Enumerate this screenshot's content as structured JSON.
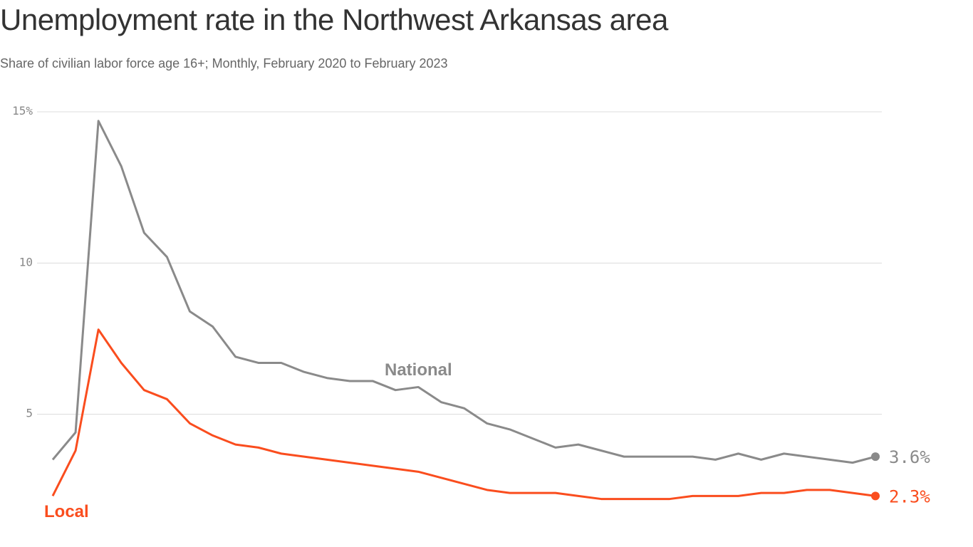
{
  "title": "Unemployment rate in the Northwest Arkansas area",
  "subtitle": "Share of civilian labor force age 16+; Monthly, February 2020 to February 2023",
  "chart_data": {
    "type": "line",
    "title": "Unemployment rate in the Northwest Arkansas area",
    "subtitle": "Share of civilian labor force age 16+; Monthly, February 2020 to February 2023",
    "x_start": "2020-02",
    "x_end": "2023-02",
    "x_frequency": "monthly",
    "ylim": [
      0,
      15
    ],
    "yticks": [
      5,
      10,
      15
    ],
    "ytick_labels": [
      "5",
      "10",
      "15%"
    ],
    "grid": true,
    "series": [
      {
        "name": "National",
        "color": "#8a8a8a",
        "end_label": "3.6%",
        "values": [
          3.5,
          4.4,
          14.7,
          13.2,
          11.0,
          10.2,
          8.4,
          7.9,
          6.9,
          6.7,
          6.7,
          6.4,
          6.2,
          6.1,
          6.1,
          5.8,
          5.9,
          5.4,
          5.2,
          4.7,
          4.5,
          4.2,
          3.9,
          4.0,
          3.8,
          3.6,
          3.6,
          3.6,
          3.6,
          3.5,
          3.7,
          3.5,
          3.7,
          3.6,
          3.5,
          3.4,
          3.6
        ]
      },
      {
        "name": "Local",
        "color": "#fa4d1e",
        "end_label": "2.3%",
        "values": [
          2.3,
          3.8,
          7.8,
          6.7,
          5.8,
          5.5,
          4.7,
          4.3,
          4.0,
          3.9,
          3.7,
          3.6,
          3.5,
          3.4,
          3.3,
          3.2,
          3.1,
          2.9,
          2.7,
          2.5,
          2.4,
          2.4,
          2.4,
          2.3,
          2.2,
          2.2,
          2.2,
          2.2,
          2.3,
          2.3,
          2.3,
          2.4,
          2.4,
          2.5,
          2.5,
          2.4,
          2.3
        ]
      }
    ]
  }
}
